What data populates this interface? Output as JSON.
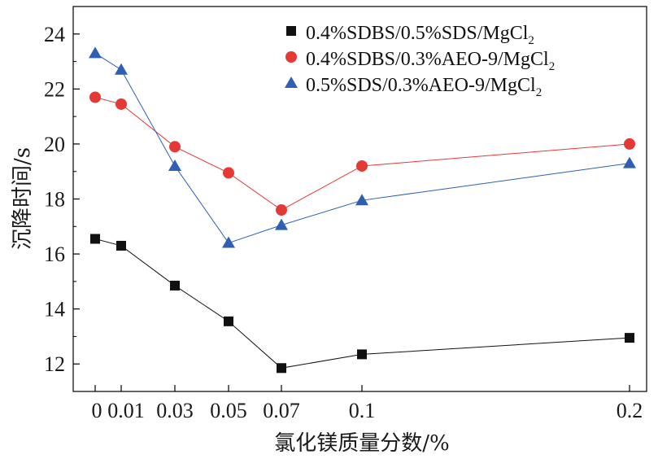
{
  "chart_data": {
    "type": "line",
    "title": "",
    "xlabel": "氯化镁质量分数/%",
    "ylabel": "沉降时间/s",
    "x_tick_labels": [
      "0",
      "0.01",
      "0.03",
      "0.05",
      "0.07",
      "0.1",
      "0.2"
    ],
    "y_ticks": [
      12,
      14,
      16,
      18,
      20,
      22,
      24
    ],
    "ylim": [
      11,
      25
    ],
    "grid": false,
    "legend_position": "top-right",
    "series": [
      {
        "name": "0.4%SDBS/0.5%SDS/MgCl",
        "subscript": "2",
        "marker": "square",
        "color": "#111111",
        "values": [
          16.55,
          16.3,
          14.85,
          13.55,
          11.85,
          12.35,
          12.95
        ]
      },
      {
        "name": "0.4%SDBS/0.3%AEO-9/MgCl",
        "subscript": "2",
        "marker": "circle",
        "color": "#e53935",
        "values": [
          21.7,
          21.45,
          19.9,
          18.95,
          17.6,
          19.2,
          20.0
        ]
      },
      {
        "name": "0.5%SDS/0.3%AEO-9/MgCl",
        "subscript": "2",
        "marker": "triangle",
        "color": "#2f5fb3",
        "values": [
          23.3,
          22.7,
          19.2,
          16.4,
          17.05,
          17.95,
          19.3
        ]
      }
    ]
  }
}
